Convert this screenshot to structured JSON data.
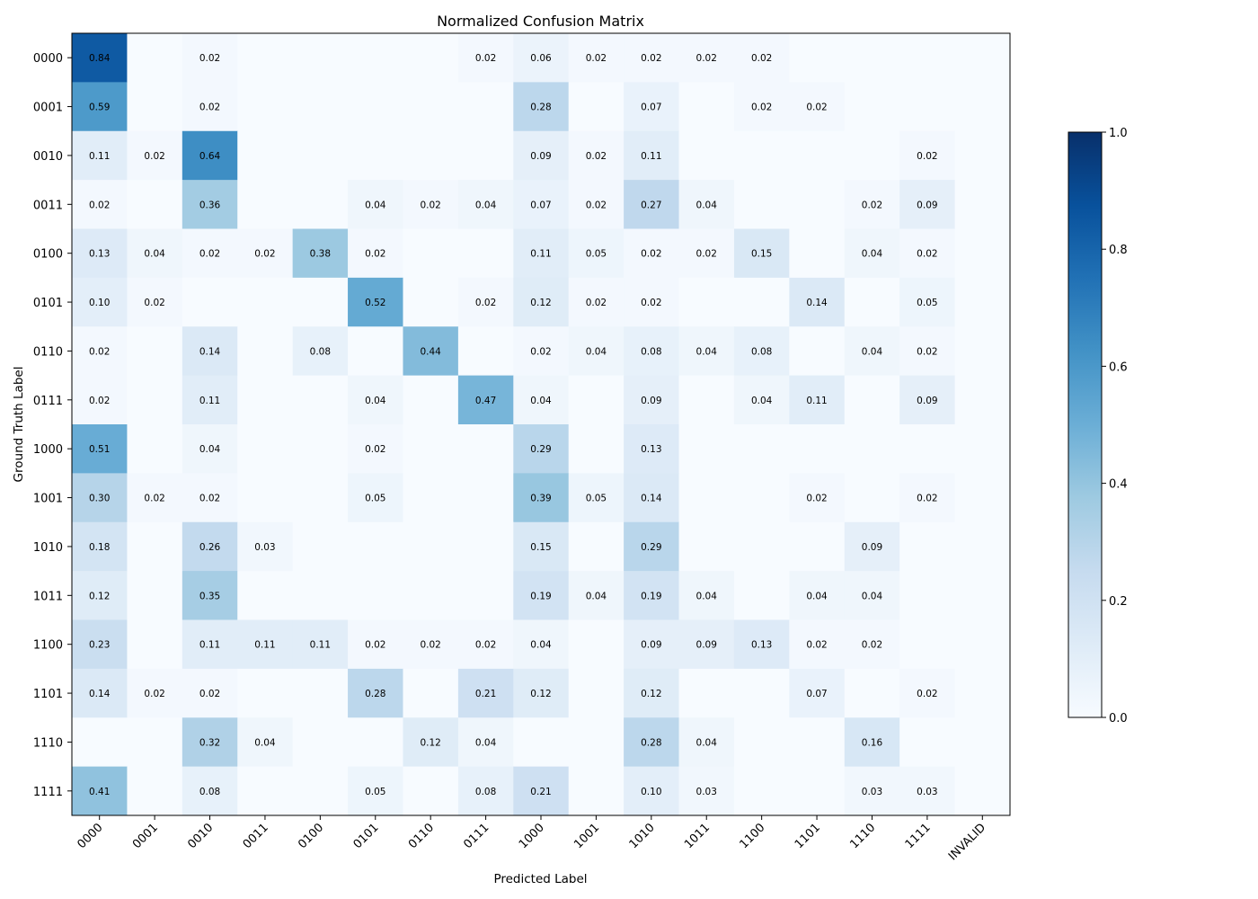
{
  "chart_data": {
    "type": "heatmap",
    "title": "Normalized Confusion Matrix",
    "xlabel": "Predicted Label",
    "ylabel": "Ground Truth Label",
    "x_categories": [
      "0000",
      "0001",
      "0010",
      "0011",
      "0100",
      "0101",
      "0110",
      "0111",
      "1000",
      "1001",
      "1010",
      "1011",
      "1100",
      "1101",
      "1110",
      "1111",
      "INVALID"
    ],
    "y_categories": [
      "0000",
      "0001",
      "0010",
      "0011",
      "0100",
      "0101",
      "0110",
      "0111",
      "1000",
      "1001",
      "1010",
      "1011",
      "1100",
      "1101",
      "1110",
      "1111"
    ],
    "values": [
      [
        0.84,
        0,
        0.02,
        0,
        0,
        0,
        0,
        0.02,
        0.06,
        0.02,
        0.02,
        0.02,
        0.02,
        0,
        0,
        0,
        0
      ],
      [
        0.59,
        0,
        0.02,
        0,
        0,
        0,
        0,
        0,
        0.28,
        0,
        0.07,
        0,
        0.02,
        0.02,
        0,
        0,
        0
      ],
      [
        0.11,
        0.02,
        0.64,
        0,
        0,
        0,
        0,
        0,
        0.09,
        0.02,
        0.11,
        0,
        0,
        0,
        0,
        0.02,
        0
      ],
      [
        0.02,
        0,
        0.36,
        0,
        0,
        0.04,
        0.02,
        0.04,
        0.07,
        0.02,
        0.27,
        0.04,
        0,
        0,
        0.02,
        0.09,
        0
      ],
      [
        0.13,
        0.04,
        0.02,
        0.02,
        0.38,
        0.02,
        0,
        0,
        0.11,
        0.05,
        0.02,
        0.02,
        0.15,
        0,
        0.04,
        0.02,
        0
      ],
      [
        0.1,
        0.02,
        0,
        0,
        0,
        0.52,
        0,
        0.02,
        0.12,
        0.02,
        0.02,
        0,
        0,
        0.14,
        0,
        0.05,
        0
      ],
      [
        0.02,
        0,
        0.14,
        0,
        0.08,
        0,
        0.44,
        0,
        0.02,
        0.04,
        0.08,
        0.04,
        0.08,
        0,
        0.04,
        0.02,
        0
      ],
      [
        0.02,
        0,
        0.11,
        0,
        0,
        0.04,
        0,
        0.47,
        0.04,
        0,
        0.09,
        0,
        0.04,
        0.11,
        0,
        0.09,
        0
      ],
      [
        0.51,
        0,
        0.04,
        0,
        0,
        0.02,
        0,
        0,
        0.29,
        0,
        0.13,
        0,
        0,
        0,
        0,
        0,
        0
      ],
      [
        0.3,
        0.02,
        0.02,
        0,
        0,
        0.05,
        0,
        0,
        0.39,
        0.05,
        0.14,
        0,
        0,
        0.02,
        0,
        0.02,
        0
      ],
      [
        0.18,
        0,
        0.26,
        0.03,
        0,
        0,
        0,
        0,
        0.15,
        0,
        0.29,
        0,
        0,
        0,
        0.09,
        0,
        0
      ],
      [
        0.12,
        0,
        0.35,
        0,
        0,
        0,
        0,
        0,
        0.19,
        0.04,
        0.19,
        0.04,
        0,
        0.04,
        0.04,
        0,
        0
      ],
      [
        0.23,
        0,
        0.11,
        0.11,
        0.11,
        0.02,
        0.02,
        0.02,
        0.04,
        0,
        0.09,
        0.09,
        0.13,
        0.02,
        0.02,
        0,
        0
      ],
      [
        0.14,
        0.02,
        0.02,
        0,
        0,
        0.28,
        0,
        0.21,
        0.12,
        0,
        0.12,
        0,
        0,
        0.07,
        0,
        0.02,
        0
      ],
      [
        0,
        0,
        0.32,
        0.04,
        0,
        0,
        0.12,
        0.04,
        0,
        0,
        0.28,
        0.04,
        0,
        0,
        0.16,
        0,
        0
      ],
      [
        0.41,
        0,
        0.08,
        0,
        0,
        0.05,
        0,
        0.08,
        0.21,
        0,
        0.1,
        0.03,
        0,
        0,
        0.03,
        0.03,
        0
      ]
    ],
    "colorbar": {
      "range": [
        0.0,
        1.0
      ],
      "ticks": [
        0.0,
        0.2,
        0.4,
        0.6,
        0.8,
        1.0
      ],
      "tick_labels": [
        "0.0",
        "0.2",
        "0.4",
        "0.6",
        "0.8",
        "1.0"
      ]
    },
    "colormap": "Blues",
    "colormap_stops": [
      "#f7fbff",
      "#deebf7",
      "#c6dbef",
      "#9ecae1",
      "#6baed6",
      "#4292c6",
      "#2171b5",
      "#08519c",
      "#08306b"
    ],
    "annotation_format": "0.00",
    "annotate_zero_cells": false
  }
}
